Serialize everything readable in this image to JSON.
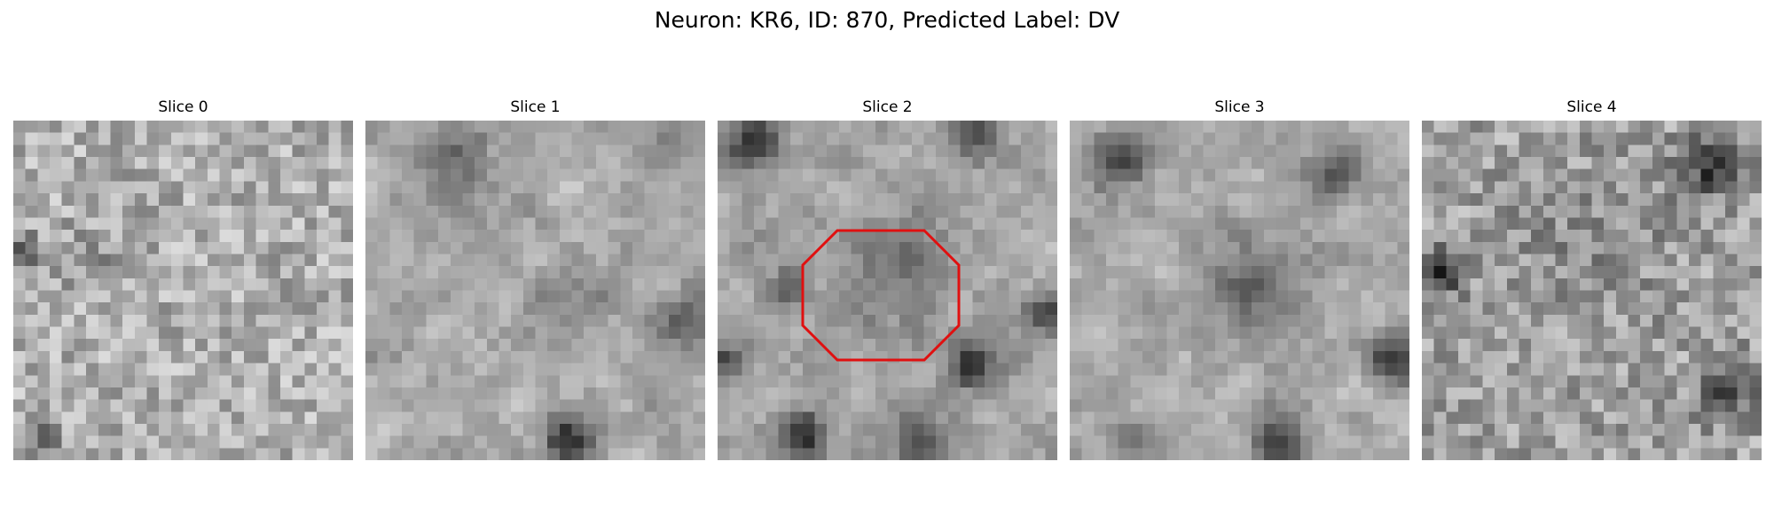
{
  "figure": {
    "title": "Neuron: KR6, ID: 870, Predicted Label: DV"
  },
  "panels": [
    {
      "title": "Slice 0",
      "seed": 11,
      "blur": 0,
      "base": 175,
      "dark_spots": [
        [
          0.03,
          0.39,
          0.05,
          120
        ],
        [
          0.08,
          0.95,
          0.07,
          60
        ],
        [
          0.25,
          0.4,
          0.12,
          25
        ]
      ]
    },
    {
      "title": "Slice 1",
      "seed": 23,
      "blur": 1,
      "base": 170,
      "dark_spots": [
        [
          0.28,
          0.12,
          0.12,
          60
        ],
        [
          0.6,
          0.55,
          0.12,
          35
        ],
        [
          0.6,
          0.95,
          0.08,
          130
        ],
        [
          0.95,
          0.6,
          0.1,
          70
        ],
        [
          0.85,
          0.05,
          0.1,
          40
        ]
      ]
    },
    {
      "title": "Slice 2",
      "seed": 37,
      "blur": 1,
      "base": 165,
      "dark_spots": [
        [
          0.1,
          0.07,
          0.08,
          110
        ],
        [
          0.75,
          0.05,
          0.09,
          80
        ],
        [
          0.52,
          0.45,
          0.17,
          55
        ],
        [
          0.2,
          0.5,
          0.07,
          60
        ],
        [
          0.97,
          0.57,
          0.06,
          110
        ],
        [
          0.75,
          0.72,
          0.08,
          110
        ],
        [
          0.25,
          0.92,
          0.08,
          120
        ],
        [
          0.6,
          0.95,
          0.1,
          80
        ],
        [
          0.02,
          0.7,
          0.05,
          80
        ]
      ]
    },
    {
      "title": "Slice 3",
      "seed": 51,
      "blur": 1,
      "base": 170,
      "dark_spots": [
        [
          0.13,
          0.12,
          0.1,
          90
        ],
        [
          0.78,
          0.15,
          0.1,
          75
        ],
        [
          0.55,
          0.5,
          0.16,
          65
        ],
        [
          0.95,
          0.7,
          0.08,
          110
        ],
        [
          0.62,
          0.95,
          0.1,
          110
        ],
        [
          0.2,
          0.95,
          0.1,
          50
        ]
      ]
    },
    {
      "title": "Slice 4",
      "seed": 73,
      "blur": 0,
      "base": 160,
      "dark_spots": [
        [
          0.85,
          0.13,
          0.1,
          110
        ],
        [
          0.05,
          0.45,
          0.08,
          100
        ],
        [
          0.5,
          0.35,
          0.22,
          25
        ],
        [
          0.9,
          0.8,
          0.1,
          70
        ]
      ]
    }
  ],
  "roi": {
    "slice": "Slice 2",
    "shape": "octagon",
    "color": "#e01010"
  },
  "colors": {
    "colormap": "gray",
    "background": "#ffffff"
  }
}
